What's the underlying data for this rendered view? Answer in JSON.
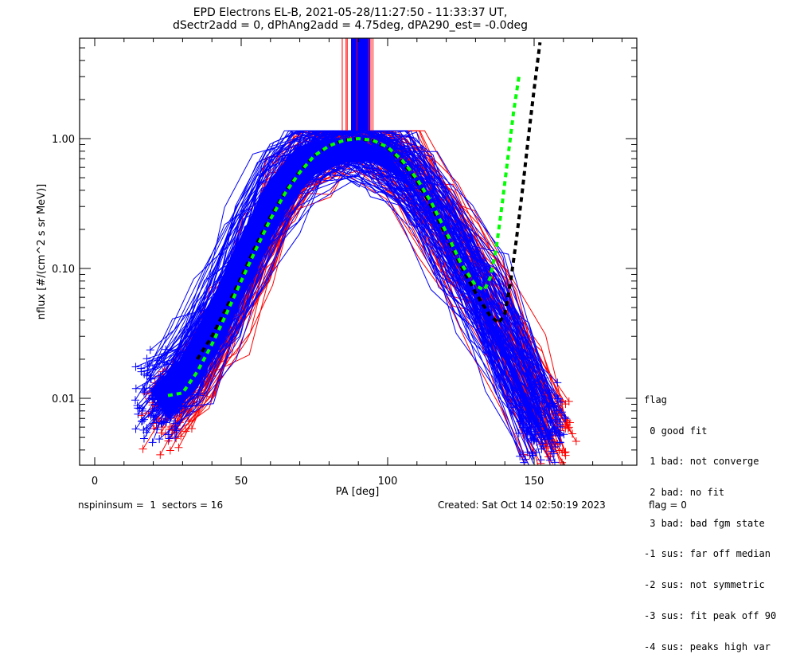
{
  "chart_data": {
    "type": "line",
    "title": "EPD Electrons EL-B, 2021-05-28/11:27:50 - 11:33:37 UT,",
    "subtitle": "dSectr2add = 0, dPhAng2add = 4.75deg, dPA290_est=  -0.0deg",
    "xlabel": "PA [deg]",
    "ylabel": "nflux [#/(cm^2 s sr MeV)]",
    "xlim": [
      -5,
      185
    ],
    "ylim": [
      0.003,
      5.9
    ],
    "yscale": "log",
    "xticks": [
      0,
      50,
      100,
      150
    ],
    "xtick_labels": [
      "0",
      "50",
      "100",
      "150"
    ],
    "yticks": [
      0.01,
      0.1,
      1.0
    ],
    "ytick_labels": [
      "0.01",
      "0.10",
      "1.00"
    ],
    "grid": false,
    "series": [
      {
        "name": "green fit",
        "color": "#00ff00",
        "style": "dashed",
        "x": [
          25,
          30,
          35,
          40,
          45,
          50,
          55,
          60,
          65,
          70,
          75,
          80,
          85,
          90,
          95,
          100,
          105,
          110,
          115,
          120,
          125,
          130,
          133,
          135,
          137,
          139,
          141,
          143,
          145
        ],
        "y": [
          0.0105,
          0.011,
          0.016,
          0.026,
          0.045,
          0.08,
          0.14,
          0.24,
          0.38,
          0.55,
          0.74,
          0.88,
          0.97,
          1.0,
          0.97,
          0.86,
          0.68,
          0.49,
          0.32,
          0.19,
          0.11,
          0.074,
          0.068,
          0.085,
          0.14,
          0.3,
          0.7,
          1.6,
          3.2
        ]
      },
      {
        "name": "black fit",
        "color": "#000000",
        "style": "dashed",
        "x": [
          35,
          40,
          45,
          50,
          55,
          60,
          65,
          70,
          75,
          80,
          85,
          90,
          95,
          100,
          105,
          110,
          115,
          120,
          125,
          130,
          135,
          138,
          140,
          142,
          144,
          146,
          148,
          150,
          152
        ],
        "y": [
          0.02,
          0.03,
          0.05,
          0.085,
          0.15,
          0.25,
          0.39,
          0.56,
          0.74,
          0.88,
          0.97,
          1.0,
          0.96,
          0.85,
          0.66,
          0.47,
          0.3,
          0.18,
          0.105,
          0.065,
          0.043,
          0.038,
          0.045,
          0.08,
          0.17,
          0.4,
          1.0,
          2.4,
          5.5
        ]
      },
      {
        "name": "spin traces (red)",
        "color": "#ff0000",
        "style": "solid-plus",
        "x": [
          25,
          35,
          45,
          55,
          65,
          75,
          85,
          95,
          105,
          115,
          125,
          135,
          145,
          155
        ],
        "y": [
          0.008,
          0.014,
          0.04,
          0.13,
          0.42,
          0.8,
          1.0,
          0.93,
          0.62,
          0.3,
          0.12,
          0.05,
          0.015,
          0.005
        ]
      },
      {
        "name": "spin traces (blue)",
        "color": "#0000ff",
        "style": "solid-plus",
        "x": [
          22,
          32,
          42,
          52,
          62,
          72,
          82,
          92,
          102,
          112,
          122,
          132,
          142,
          152
        ],
        "y": [
          0.01,
          0.017,
          0.045,
          0.14,
          0.4,
          0.75,
          0.93,
          0.95,
          0.7,
          0.36,
          0.15,
          0.06,
          0.02,
          0.006
        ]
      }
    ]
  },
  "legend": {
    "title": "flag",
    "entries": [
      " 0 good fit",
      " 1 bad: not converge",
      " 2 bad: no fit",
      " 3 bad: bad fgm state",
      "-1 sus: far off median",
      "-2 sus: not symmetric",
      "-3 sus: fit peak off 90",
      "-4 sus: peaks high var"
    ]
  },
  "footer": {
    "left": "nspininsum =  1  sectors = 16",
    "created": "Created: Sat Oct 14 02:50:19 2023",
    "flag": "flag = 0"
  },
  "colors": {
    "red": "#ff0000",
    "blue": "#0000ff",
    "green": "#00ff00",
    "black": "#000000"
  }
}
